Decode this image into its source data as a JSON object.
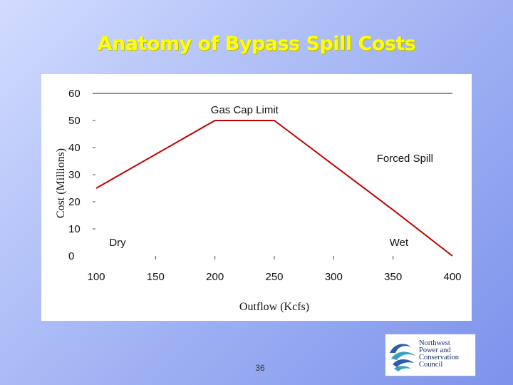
{
  "title": "Anatomy of Bypass Spill Costs",
  "page_number": "36",
  "logo": {
    "lines": [
      "Northwest",
      "Power and",
      "Conservation",
      "Council"
    ],
    "icon": "wave-swirl-icon",
    "colors": {
      "blue": "#2a5caa",
      "teal": "#3aa0c0"
    }
  },
  "colors": {
    "title": "#ffff00",
    "line": "#c00000",
    "background_light": "#d2dcff",
    "background_dark": "#7d92ec"
  },
  "chart_data": {
    "type": "line",
    "title": "",
    "xlabel": "Outflow (Kcfs)",
    "ylabel": "Cost (Millions)",
    "xlim": [
      100,
      400
    ],
    "ylim": [
      0,
      60
    ],
    "x_ticks": [
      100,
      150,
      200,
      250,
      300,
      350,
      400
    ],
    "y_ticks": [
      0,
      10,
      20,
      30,
      40,
      50,
      60
    ],
    "grid": false,
    "legend": "none",
    "series": [
      {
        "x": [
          100,
          200,
          250,
          350,
          400
        ],
        "y": [
          25,
          50,
          50,
          17,
          0
        ]
      }
    ],
    "annotations": [
      {
        "text": "Gas Cap Limit",
        "x": 225,
        "y": 54
      },
      {
        "text": "Forced Spill",
        "x": 360,
        "y": 36
      },
      {
        "text": "Dry",
        "x": 118,
        "y": 5
      },
      {
        "text": "Wet",
        "x": 355,
        "y": 5
      }
    ]
  }
}
